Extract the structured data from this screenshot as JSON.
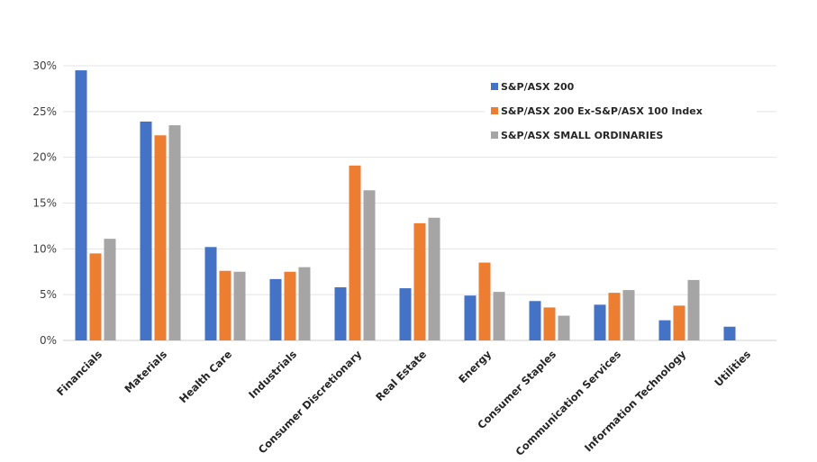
{
  "chart_data": {
    "type": "bar",
    "title": "",
    "xlabel": "",
    "ylabel": "",
    "ylim": [
      0,
      30
    ],
    "yticks": [
      0,
      5,
      10,
      15,
      20,
      25,
      30
    ],
    "ytick_format": "percent",
    "grid": true,
    "legend_position": "top-right",
    "categories": [
      "Financials",
      "Materials",
      "Health Care",
      "Industrials",
      "Consumer Discretionary",
      "Real Estate",
      "Energy",
      "Consumer Staples",
      "Communication Services",
      "Information Technology",
      "Utilities"
    ],
    "series": [
      {
        "name": "S&P/ASX 200",
        "color": "#4472C4",
        "values": [
          29.5,
          23.9,
          10.2,
          6.7,
          5.8,
          5.7,
          4.9,
          4.3,
          3.9,
          2.2,
          1.5
        ]
      },
      {
        "name": "S&P/ASX 200 Ex-S&P/ASX 100 Index",
        "color": "#ED7D31",
        "values": [
          9.5,
          22.4,
          7.6,
          7.5,
          19.1,
          12.8,
          8.5,
          3.6,
          5.2,
          3.8,
          0
        ]
      },
      {
        "name": "S&P/ASX SMALL ORDINARIES",
        "color": "#A5A5A5",
        "values": [
          11.1,
          23.5,
          7.5,
          8.0,
          16.4,
          13.4,
          5.3,
          2.7,
          5.5,
          6.6,
          0
        ]
      }
    ]
  }
}
